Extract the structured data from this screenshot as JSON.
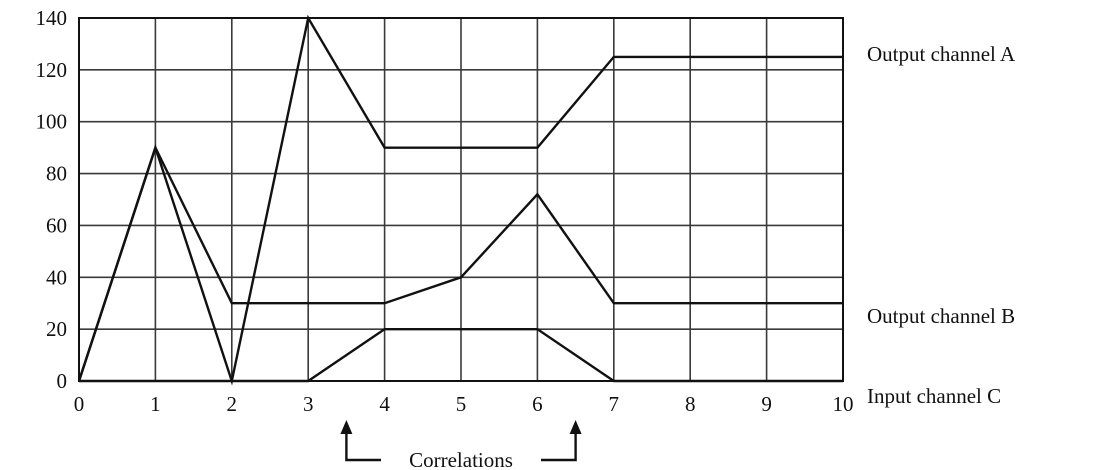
{
  "chart_data": {
    "type": "line",
    "title": "",
    "xlabel": "",
    "ylabel": "",
    "xlim": [
      0,
      10
    ],
    "ylim": [
      0,
      140
    ],
    "x_ticks": [
      "0",
      "1",
      "2",
      "3",
      "4",
      "5",
      "6",
      "7",
      "8",
      "9",
      "10"
    ],
    "y_ticks": [
      "0",
      "20",
      "40",
      "60",
      "80",
      "100",
      "120",
      "140"
    ],
    "grid": true,
    "legend": "none",
    "series": [
      {
        "name": "Output channel A",
        "x": [
          0,
          1,
          2,
          3,
          4,
          6,
          7,
          10
        ],
        "values": [
          0,
          90,
          0,
          140,
          90,
          90,
          125,
          125
        ]
      },
      {
        "name": "Output channel B",
        "x": [
          0,
          1,
          2,
          4,
          5,
          6,
          7,
          10
        ],
        "values": [
          0,
          90,
          30,
          30,
          40,
          72,
          30,
          30
        ]
      },
      {
        "name": "Input channel C",
        "x": [
          0,
          3,
          4,
          6,
          7,
          10
        ],
        "values": [
          0,
          0,
          20,
          20,
          0,
          0
        ]
      }
    ],
    "annotations": [
      {
        "text": "Correlations",
        "arrows_at_x": [
          3.5,
          6.5
        ]
      }
    ]
  }
}
